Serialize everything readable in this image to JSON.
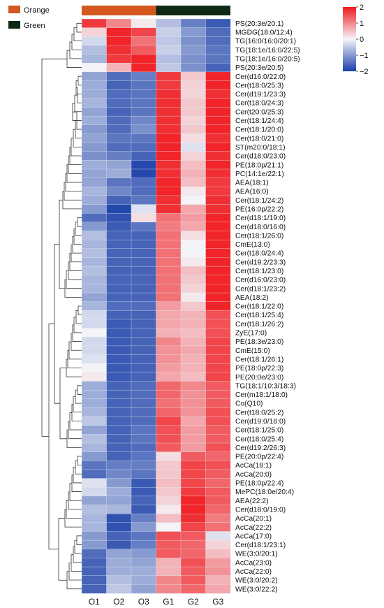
{
  "chart_data": {
    "type": "heatmap",
    "color_scale": {
      "min": -2,
      "max": 2,
      "low_color": "#1a3fa8",
      "mid_color": "#f4f4f8",
      "high_color": "#f0191e",
      "ticks": [
        {
          "value": 2,
          "label": "2"
        },
        {
          "value": 1,
          "label": "1"
        },
        {
          "value": 0,
          "label": "0"
        },
        {
          "value": -1,
          "label": "−1"
        },
        {
          "value": -2,
          "label": "−2"
        }
      ]
    },
    "groups": [
      {
        "name": "Orange",
        "color": "#d4581e",
        "columns": [
          "O1",
          "O2",
          "O3"
        ]
      },
      {
        "name": "Green",
        "color": "#0e2a14",
        "columns": [
          "G1",
          "G2",
          "G3"
        ]
      }
    ],
    "columns": [
      "O1",
      "O2",
      "O3",
      "G1",
      "G2",
      "G3"
    ],
    "rows": [
      {
        "label": "PS(20:3e/20:1)",
        "values": [
          1.7,
          1.0,
          0.1,
          -0.6,
          -1.3,
          -1.7
        ]
      },
      {
        "label": "MGDG(18:0/12:4)",
        "values": [
          0.3,
          1.9,
          1.6,
          -0.4,
          -1.0,
          -1.5
        ]
      },
      {
        "label": "TG(16:0/16:0/20:1)",
        "values": [
          -0.3,
          1.9,
          1.2,
          -0.5,
          -1.1,
          -1.5
        ]
      },
      {
        "label": "TG(18:1e/16:0/22:5)",
        "values": [
          -0.6,
          1.8,
          1.4,
          -0.4,
          -1.0,
          -1.4
        ]
      },
      {
        "label": "TG(18:1e/16:0/20:5)",
        "values": [
          -0.7,
          1.7,
          1.9,
          -0.6,
          -1.1,
          -1.4
        ]
      },
      {
        "label": "PS(20:3e/20:5)",
        "values": [
          0.0,
          0.6,
          1.9,
          -0.5,
          -1.1,
          -1.6
        ]
      },
      {
        "label": "Cer(d16:0/22:0)",
        "values": [
          -0.9,
          -1.5,
          -1.3,
          1.7,
          0.4,
          1.9
        ]
      },
      {
        "label": "Cer(t18:0/25:3)",
        "values": [
          -0.8,
          -1.6,
          -1.4,
          1.7,
          0.3,
          1.9
        ]
      },
      {
        "label": "Cer(d19:1/23:3)",
        "values": [
          -0.8,
          -1.5,
          -1.4,
          1.8,
          0.3,
          1.8
        ]
      },
      {
        "label": "Cer(t18:0/24:3)",
        "values": [
          -0.7,
          -1.5,
          -1.4,
          1.8,
          0.4,
          1.9
        ]
      },
      {
        "label": "Cer(t20:0/25:3)",
        "values": [
          -0.9,
          -1.6,
          -1.4,
          1.8,
          0.4,
          1.9
        ]
      },
      {
        "label": "Cer(t18:1/24:4)",
        "values": [
          -0.8,
          -1.5,
          -1.2,
          1.8,
          0.3,
          1.9
        ]
      },
      {
        "label": "Cer(t18:1/20:0)",
        "values": [
          -1.0,
          -1.5,
          -1.1,
          1.8,
          0.4,
          1.9
        ]
      },
      {
        "label": "Cer(t18:0/21:0)",
        "values": [
          -0.9,
          -1.4,
          -1.4,
          1.9,
          0.2,
          1.8
        ]
      },
      {
        "label": "ST(m20:0/18:1)",
        "values": [
          -1.0,
          -1.5,
          -1.5,
          1.9,
          -0.2,
          1.9
        ]
      },
      {
        "label": "Cer(d18:0/23:0)",
        "values": [
          -1.1,
          -1.3,
          -1.6,
          1.9,
          0.3,
          1.8
        ]
      },
      {
        "label": "PE(18:0p/21:1)",
        "values": [
          -0.8,
          -0.9,
          -1.9,
          1.8,
          0.5,
          1.9
        ]
      },
      {
        "label": "PC(14:1e/22:1)",
        "values": [
          -0.9,
          -0.8,
          -1.9,
          1.8,
          0.6,
          1.8
        ]
      },
      {
        "label": "AEA(18:1)",
        "values": [
          -0.9,
          -1.4,
          -1.5,
          1.9,
          0.5,
          1.7
        ]
      },
      {
        "label": "AEA(16:0)",
        "values": [
          -0.7,
          -1.2,
          -1.5,
          1.9,
          0.1,
          1.7
        ]
      },
      {
        "label": "Cer(t18:1/24:2)",
        "values": [
          -0.8,
          -1.6,
          -1.4,
          1.8,
          0.0,
          1.8
        ]
      },
      {
        "label": "PE(16:0p/22:2)",
        "values": [
          -1.0,
          -1.9,
          -0.2,
          1.8,
          0.7,
          1.8
        ]
      },
      {
        "label": "Cer(d18:1/19:0)",
        "values": [
          -1.5,
          -1.8,
          0.2,
          1.2,
          0.8,
          1.9
        ]
      },
      {
        "label": "Cer(d18:0/16:0)",
        "values": [
          -1.0,
          -1.7,
          -1.4,
          1.1,
          0.7,
          1.9
        ]
      },
      {
        "label": "Cer(t18:1/26:0)",
        "values": [
          -0.6,
          -1.6,
          -1.6,
          1.2,
          0.2,
          1.9
        ]
      },
      {
        "label": "CmE(13:0)",
        "values": [
          -0.7,
          -1.6,
          -1.6,
          1.2,
          0.0,
          1.9
        ]
      },
      {
        "label": "Cer(t18:0/24:4)",
        "values": [
          -0.6,
          -1.6,
          -1.6,
          1.2,
          0.0,
          1.9
        ]
      },
      {
        "label": "Cer(d19:2/23:3)",
        "values": [
          -0.7,
          -1.6,
          -1.6,
          1.2,
          0.1,
          1.9
        ]
      },
      {
        "label": "Cer(t18:1/23:0)",
        "values": [
          -0.6,
          -1.6,
          -1.6,
          1.2,
          0.5,
          1.9
        ]
      },
      {
        "label": "Cer(d16:0/23:0)",
        "values": [
          -0.7,
          -1.6,
          -1.6,
          1.2,
          0.4,
          1.9
        ]
      },
      {
        "label": "Cer(d18:1/23:2)",
        "values": [
          -0.7,
          -1.6,
          -1.6,
          1.2,
          0.3,
          1.9
        ]
      },
      {
        "label": "AEA(18:2)",
        "values": [
          -0.9,
          -1.6,
          -1.6,
          1.2,
          0.1,
          1.9
        ]
      },
      {
        "label": "Cer(t18:1/22:0)",
        "values": [
          -0.7,
          -1.5,
          -1.5,
          0.8,
          0.4,
          1.9
        ]
      },
      {
        "label": "Cer(t18:1/25:4)",
        "values": [
          -0.3,
          -1.6,
          -1.6,
          0.7,
          0.6,
          1.5
        ]
      },
      {
        "label": "Cer(t18:1/26:2)",
        "values": [
          -0.3,
          -1.7,
          -1.6,
          0.7,
          0.6,
          1.5
        ]
      },
      {
        "label": "ZyE(17:0)",
        "values": [
          0.0,
          -1.7,
          -1.6,
          0.6,
          0.5,
          1.5
        ]
      },
      {
        "label": "PE(18:3e/23:0)",
        "values": [
          -0.3,
          -1.7,
          -1.6,
          1.0,
          0.6,
          1.6
        ]
      },
      {
        "label": "CmE(15:0)",
        "values": [
          -0.3,
          -1.7,
          -1.6,
          0.9,
          0.7,
          1.6
        ]
      },
      {
        "label": "Cer(t18:1/26:1)",
        "values": [
          -0.2,
          -1.7,
          -1.6,
          0.9,
          0.6,
          1.6
        ]
      },
      {
        "label": "PE(18:0p/22:3)",
        "values": [
          0.0,
          -1.7,
          -1.6,
          0.8,
          0.6,
          1.6
        ]
      },
      {
        "label": "PE(20:0e/23:0)",
        "values": [
          0.1,
          -1.7,
          -1.6,
          0.7,
          0.5,
          1.6
        ]
      },
      {
        "label": "TG(18:1/10:3/18:3)",
        "values": [
          -0.8,
          -1.6,
          -1.5,
          1.3,
          1.0,
          1.4
        ]
      },
      {
        "label": "Cer(m18:1/18:0)",
        "values": [
          -0.8,
          -1.6,
          -1.5,
          1.3,
          0.9,
          1.4
        ]
      },
      {
        "label": "Co(Q10)",
        "values": [
          -0.8,
          -1.6,
          -1.5,
          1.2,
          0.9,
          1.4
        ]
      },
      {
        "label": "Cer(t18:0/25:2)",
        "values": [
          -0.7,
          -1.6,
          -1.5,
          1.3,
          0.9,
          1.5
        ]
      },
      {
        "label": "Cer(d19:0/18:0)",
        "values": [
          -0.5,
          -1.6,
          -1.5,
          1.6,
          0.7,
          1.5
        ]
      },
      {
        "label": "Cer(t18:1/25:0)",
        "values": [
          -0.9,
          -1.6,
          -1.4,
          1.5,
          0.8,
          1.4
        ]
      },
      {
        "label": "Cer(t18:0/25:4)",
        "values": [
          -0.6,
          -1.6,
          -1.4,
          1.5,
          0.8,
          1.4
        ]
      },
      {
        "label": "Cer(d19:2/26:3)",
        "values": [
          -0.7,
          -1.6,
          -1.5,
          1.4,
          0.8,
          1.5
        ]
      },
      {
        "label": "PE(20:0p/22:4)",
        "values": [
          -1.0,
          -1.6,
          -1.4,
          0.2,
          1.4,
          1.3
        ]
      },
      {
        "label": "AcCa(18:1)",
        "values": [
          -1.4,
          -1.3,
          -1.3,
          0.4,
          1.6,
          1.5
        ]
      },
      {
        "label": "AcCa(20:0)",
        "values": [
          -1.5,
          -1.2,
          -1.4,
          0.4,
          1.6,
          1.4
        ]
      },
      {
        "label": "PE(18:0p/22:4)",
        "values": [
          -0.2,
          -1.0,
          -1.7,
          0.5,
          1.6,
          1.3
        ]
      },
      {
        "label": "MePC(18:0e/20:4)",
        "values": [
          -0.3,
          -0.8,
          -1.7,
          0.4,
          1.7,
          1.4
        ]
      },
      {
        "label": "AEA(22:2)",
        "values": [
          -0.9,
          -0.9,
          -1.6,
          0.3,
          1.9,
          1.4
        ]
      },
      {
        "label": "Cer(d18:0/19:0)",
        "values": [
          -0.6,
          -0.7,
          -1.7,
          0.1,
          1.9,
          1.3
        ]
      },
      {
        "label": "AcCa(20:1)",
        "values": [
          -0.7,
          -1.8,
          -1.3,
          0.5,
          1.8,
          1.1
        ]
      },
      {
        "label": "AcCa(22:2)",
        "values": [
          -0.7,
          -1.8,
          -1.0,
          0.0,
          1.6,
          1.2
        ]
      },
      {
        "label": "AcCa(17:0)",
        "values": [
          -1.0,
          -1.6,
          -1.4,
          1.5,
          1.4,
          -0.2
        ]
      },
      {
        "label": "Cer(d18:1/23:1)",
        "values": [
          -1.0,
          -1.7,
          -1.3,
          1.4,
          1.3,
          0.3
        ]
      },
      {
        "label": "WE(3:0/20:1)",
        "values": [
          -1.5,
          -0.9,
          -1.0,
          1.4,
          1.3,
          0.5
        ]
      },
      {
        "label": "AcCa(23:0)",
        "values": [
          -1.6,
          -0.8,
          -0.9,
          0.6,
          1.5,
          0.8
        ]
      },
      {
        "label": "AcCa(22:0)",
        "values": [
          -1.6,
          -0.8,
          -0.8,
          0.6,
          1.4,
          0.9
        ]
      },
      {
        "label": "WE(3:0/20:2)",
        "values": [
          -1.6,
          -0.6,
          -0.8,
          1.0,
          1.4,
          0.6
        ]
      },
      {
        "label": "WE(3:0/22:2)",
        "values": [
          -1.6,
          -0.5,
          -0.9,
          1.0,
          1.3,
          0.7
        ]
      }
    ]
  }
}
